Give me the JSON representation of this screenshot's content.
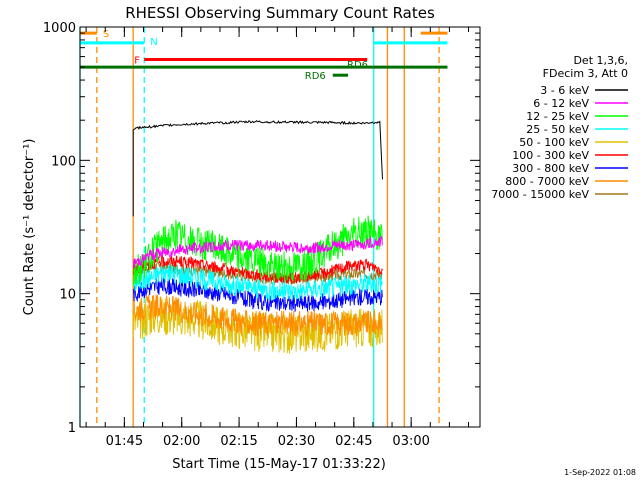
{
  "chart_data": {
    "type": "line",
    "title": "RHESSI Observing Summary Count Rates",
    "ylabel": "Count Rate (s⁻¹ detector⁻¹)",
    "xlabel": "Start Time (15-May-17 01:33:22)",
    "y_scale": "log",
    "ylim": [
      1,
      1000
    ],
    "x_unit": "minutes since 01:33",
    "xlim": [
      0.4,
      105
    ],
    "y_ticks": [
      {
        "v": 1,
        "label": "1"
      },
      {
        "v": 10,
        "label": "10"
      },
      {
        "v": 100,
        "label": "100"
      },
      {
        "v": 1000,
        "label": "1000"
      }
    ],
    "x_ticks": [
      {
        "v": 12,
        "label": "01:45"
      },
      {
        "v": 27,
        "label": "02:00"
      },
      {
        "v": 42,
        "label": "02:15"
      },
      {
        "v": 57,
        "label": "02:30"
      },
      {
        "v": 72,
        "label": "02:45"
      },
      {
        "v": 87,
        "label": "03:00"
      }
    ],
    "legend_header": [
      "Det 1,3,6,",
      "FDecim 3, Att 0"
    ],
    "series": [
      {
        "name": "3 - 6 keV",
        "color": "#000000",
        "points": [
          [
            14.3,
            38
          ],
          [
            14.3,
            170
          ],
          [
            15.4,
            175
          ],
          [
            25,
            185
          ],
          [
            35,
            190
          ],
          [
            45,
            195
          ],
          [
            55,
            193
          ],
          [
            65,
            192
          ],
          [
            75,
            190
          ],
          [
            79,
            195
          ],
          [
            79.5,
            195
          ],
          [
            79.5,
            72
          ]
        ]
      },
      {
        "name": "6 - 12 keV",
        "color": "#ff00ff",
        "points": [
          [
            14.3,
            17
          ],
          [
            20,
            20
          ],
          [
            25,
            21
          ],
          [
            30,
            22
          ],
          [
            40,
            23
          ],
          [
            50,
            23
          ],
          [
            57,
            22
          ],
          [
            62,
            22
          ],
          [
            67,
            23
          ],
          [
            72,
            23
          ],
          [
            76,
            24
          ],
          [
            79.5,
            25
          ]
        ]
      },
      {
        "name": "12 - 25 keV",
        "color": "#00ff00",
        "points": [
          [
            14.3,
            14
          ],
          [
            18,
            18
          ],
          [
            22,
            25
          ],
          [
            26,
            28
          ],
          [
            30,
            24
          ],
          [
            35,
            23
          ],
          [
            40,
            20
          ],
          [
            45,
            18
          ],
          [
            50,
            16
          ],
          [
            55,
            16
          ],
          [
            60,
            17
          ],
          [
            64,
            20
          ],
          [
            68,
            24
          ],
          [
            72,
            28
          ],
          [
            76,
            30
          ],
          [
            79.5,
            25
          ]
        ]
      },
      {
        "name": "25 - 50 keV",
        "color": "#00ffff",
        "points": [
          [
            14.3,
            12
          ],
          [
            18,
            13
          ],
          [
            22,
            14.5
          ],
          [
            27,
            14
          ],
          [
            32,
            13
          ],
          [
            38,
            12
          ],
          [
            45,
            11
          ],
          [
            52,
            10.5
          ],
          [
            58,
            10.5
          ],
          [
            64,
            11
          ],
          [
            70,
            11.5
          ],
          [
            75,
            12
          ],
          [
            79.5,
            12
          ]
        ]
      },
      {
        "name": "50 - 100 keV",
        "color": "#e0c000",
        "points": [
          [
            14.3,
            6
          ],
          [
            20,
            7
          ],
          [
            30,
            6.5
          ],
          [
            40,
            5.5
          ],
          [
            50,
            5
          ],
          [
            60,
            5
          ],
          [
            70,
            5.5
          ],
          [
            79.5,
            5.5
          ]
        ]
      },
      {
        "name": "100 - 300 keV",
        "color": "#ff0000",
        "points": [
          [
            14.3,
            15
          ],
          [
            18,
            16.5
          ],
          [
            22,
            17.5
          ],
          [
            26,
            17.5
          ],
          [
            30,
            17
          ],
          [
            35,
            16
          ],
          [
            40,
            15
          ],
          [
            45,
            14
          ],
          [
            50,
            13.5
          ],
          [
            55,
            13
          ],
          [
            60,
            13.5
          ],
          [
            65,
            14.5
          ],
          [
            70,
            16
          ],
          [
            74,
            16.5
          ],
          [
            77,
            16
          ],
          [
            79.5,
            15
          ]
        ]
      },
      {
        "name": "300 - 800 keV",
        "color": "#0000ff",
        "points": [
          [
            14.3,
            10
          ],
          [
            18,
            11
          ],
          [
            22,
            11.5
          ],
          [
            27,
            11
          ],
          [
            32,
            10.5
          ],
          [
            38,
            10
          ],
          [
            44,
            9
          ],
          [
            50,
            8.5
          ],
          [
            56,
            8.5
          ],
          [
            62,
            8.5
          ],
          [
            68,
            9
          ],
          [
            74,
            9.5
          ],
          [
            79.5,
            9.5
          ]
        ]
      },
      {
        "name": "800 - 7000 keV",
        "color": "#ff8c00",
        "points": [
          [
            14.3,
            7.5
          ],
          [
            18,
            8
          ],
          [
            22,
            8
          ],
          [
            27,
            7.5
          ],
          [
            32,
            7
          ],
          [
            38,
            6.5
          ],
          [
            44,
            6
          ],
          [
            50,
            6
          ],
          [
            56,
            6
          ],
          [
            62,
            6
          ],
          [
            68,
            6
          ],
          [
            74,
            6
          ],
          [
            79.5,
            6
          ]
        ]
      },
      {
        "name": "7000 - 15000 keV",
        "color": "#a0781e",
        "points": [
          [
            14.3,
            15
          ],
          [
            20,
            16
          ],
          [
            30,
            15
          ],
          [
            40,
            14
          ],
          [
            50,
            13
          ],
          [
            60,
            13
          ],
          [
            70,
            14
          ],
          [
            79.5,
            14
          ]
        ]
      }
    ],
    "flag_labels": {
      "saa": "S",
      "night": "N",
      "flare": "F",
      "rd6_short": "RD6",
      "rd6": "RD6"
    },
    "flag_bars": [
      {
        "label": "S",
        "color": "#ff8c00",
        "y": 900,
        "segments": [
          [
            0.4,
            4.8
          ],
          [
            89.5,
            96.5
          ]
        ]
      },
      {
        "label": "N",
        "color": "#00ffff",
        "y": 760,
        "segments": [
          [
            0.4,
            17.2
          ],
          [
            77.2,
            96.5
          ]
        ]
      },
      {
        "label": "F",
        "color": "#ff0000",
        "y": 570,
        "segments": [
          [
            17.2,
            75.5
          ]
        ]
      },
      {
        "label": "RD6",
        "color": "#007000",
        "y": 500,
        "segments": [
          [
            0.4,
            96.5
          ]
        ]
      },
      {
        "label": "RD6",
        "color": "#007000",
        "y": 435,
        "segments": [
          [
            66.5,
            70.5
          ]
        ]
      }
    ],
    "vlines": [
      {
        "x": 0.4,
        "color": "#00ffff",
        "style": "solid"
      },
      {
        "x": 4.8,
        "color": "#ff8c00",
        "style": "dashed"
      },
      {
        "x": 14.3,
        "color": "#ff8c00",
        "style": "solid"
      },
      {
        "x": 17.2,
        "color": "#00ffff",
        "style": "dashed"
      },
      {
        "x": 77.2,
        "color": "#00ffff",
        "style": "solid"
      },
      {
        "x": 80.8,
        "color": "#ff8c00",
        "style": "solid"
      },
      {
        "x": 85.2,
        "color": "#ff8c00",
        "style": "solid"
      },
      {
        "x": 94.3,
        "color": "#ff8c00",
        "style": "dashed"
      }
    ],
    "grid": false,
    "legend_position": "right"
  },
  "footer_date": "1-Sep-2022 01:08"
}
